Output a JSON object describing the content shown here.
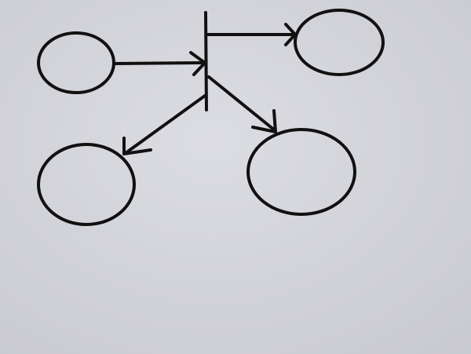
{
  "diagram": {
    "kind": "hand-drawn node diagram",
    "colors": {
      "ink": "#111111",
      "paper": "#dcdde2",
      "paper_edge": "#c9cad0"
    },
    "nodes": [
      {
        "id": "node-left",
        "label": ""
      },
      {
        "id": "node-top-right",
        "label": ""
      },
      {
        "id": "node-bottom-left",
        "label": ""
      },
      {
        "id": "node-bottom-right",
        "label": ""
      }
    ],
    "junction": {
      "id": "junction-bar",
      "label": ""
    },
    "edges": [
      {
        "from": "node-left",
        "to": "junction-bar",
        "label": ""
      },
      {
        "from": "junction-bar",
        "to": "node-top-right",
        "label": ""
      },
      {
        "from": "junction-bar",
        "to": "node-bottom-left",
        "label": ""
      },
      {
        "from": "junction-bar",
        "to": "node-bottom-right",
        "label": ""
      }
    ]
  }
}
